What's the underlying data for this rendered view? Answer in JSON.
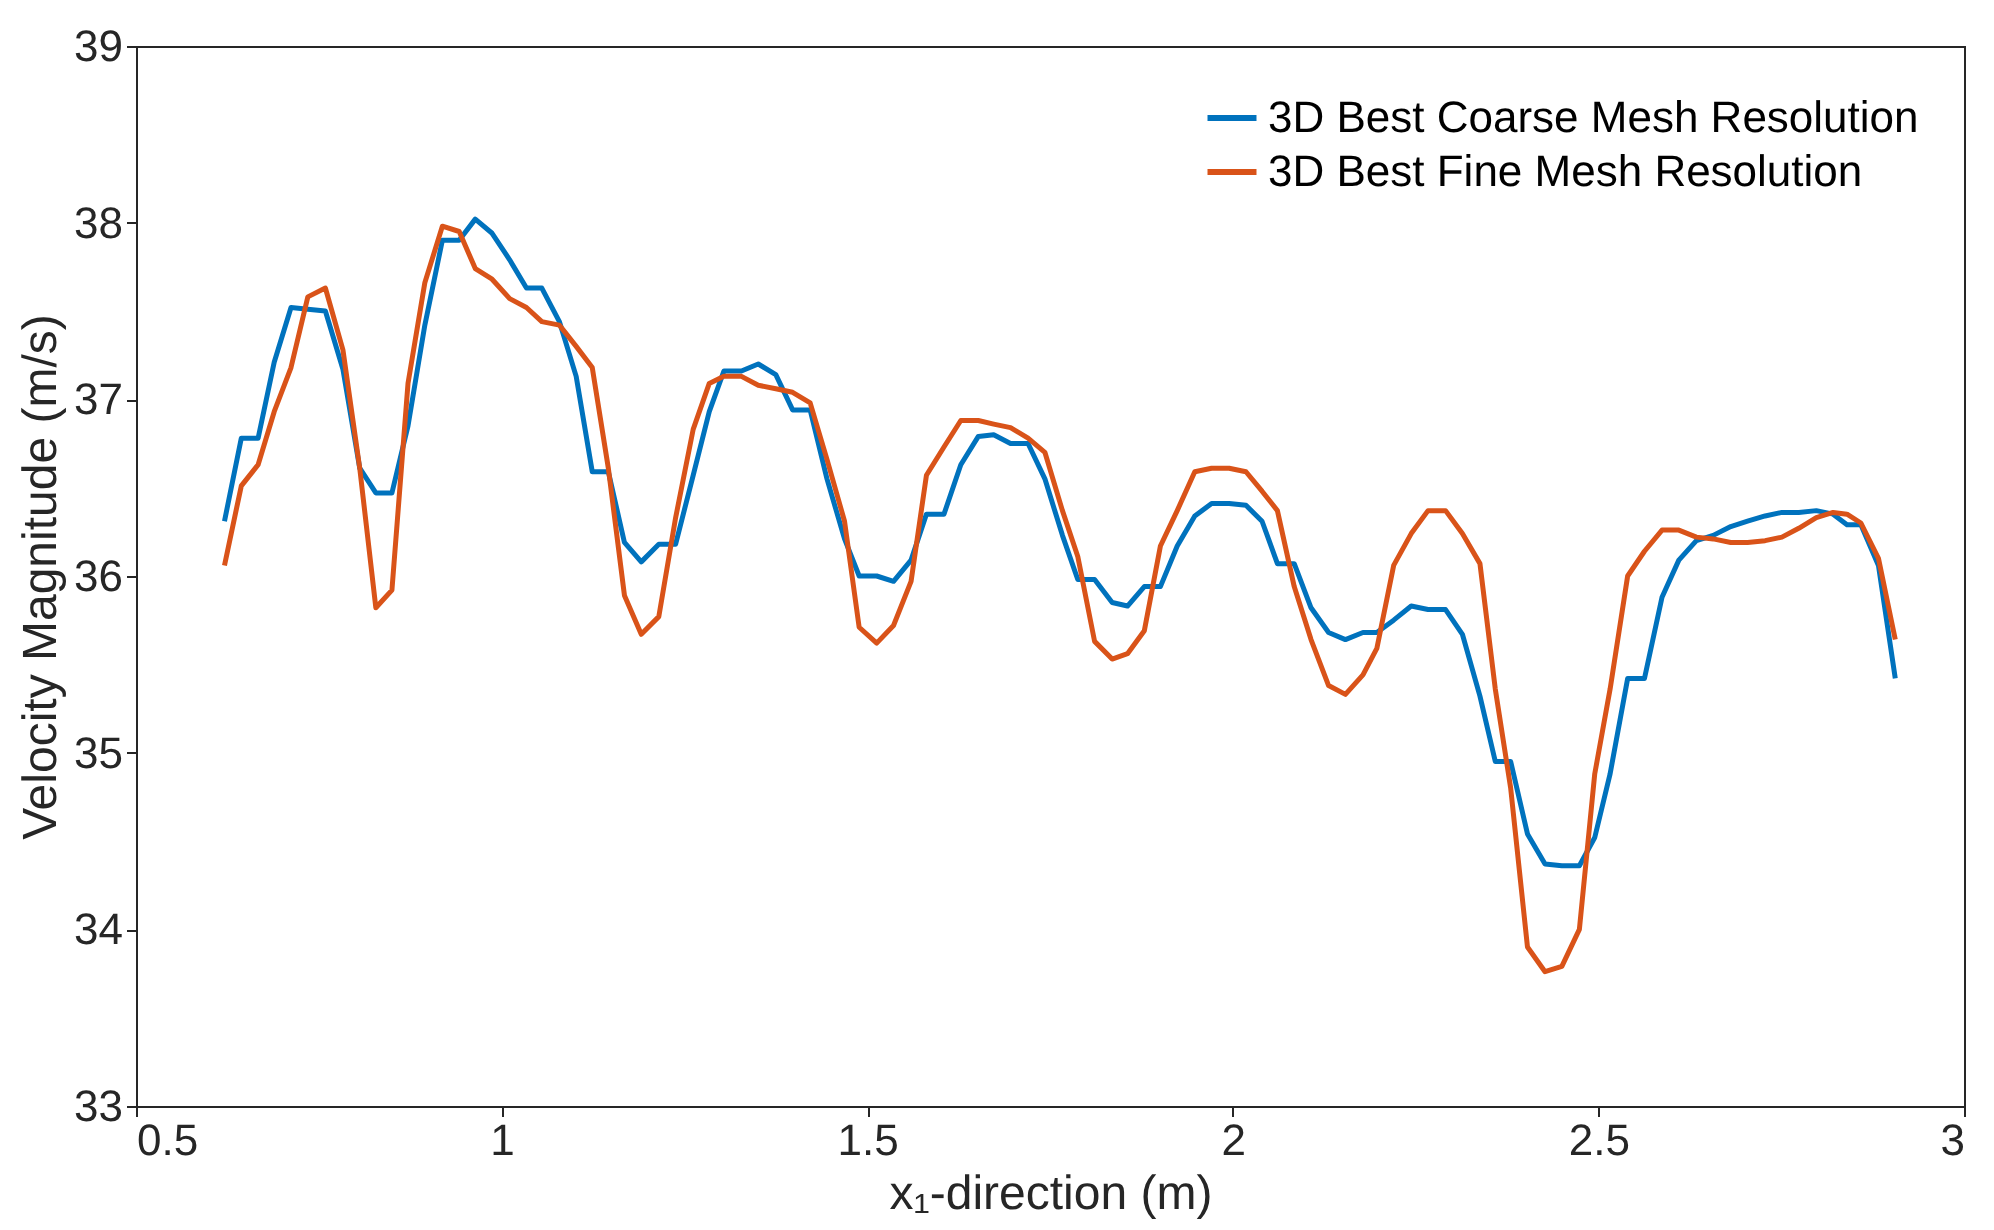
{
  "chart_data": {
    "type": "line",
    "xlabel": "x₁-direction (m)",
    "ylabel": "Velocity Magnitude (m/s)",
    "xlim": [
      0.5,
      3
    ],
    "xticks": [
      0.5,
      1,
      1.5,
      2,
      2.5,
      3
    ],
    "ylim": [
      33,
      39
    ],
    "yticks": [
      33,
      34,
      35,
      36,
      37,
      38,
      39
    ],
    "grid": false,
    "legend": "top right",
    "marker": "none",
    "line_style": "solid",
    "series": [
      {
        "name": "3D Best Coarse Mesh Resolution",
        "color": "#0072bd",
        "x": [
          0.621,
          0.644,
          0.667,
          0.689,
          0.712,
          0.735,
          0.759,
          0.783,
          0.806,
          0.828,
          0.85,
          0.872,
          0.895,
          0.919,
          0.942,
          0.964,
          0.987,
          1.011,
          1.034,
          1.055,
          1.079,
          1.102,
          1.124,
          1.146,
          1.168,
          1.191,
          1.215,
          1.238,
          1.262,
          1.284,
          1.304,
          1.328,
          1.351,
          1.375,
          1.398,
          1.422,
          1.445,
          1.469,
          1.489,
          1.513,
          1.536,
          1.56,
          1.581,
          1.605,
          1.628,
          1.652,
          1.673,
          1.696,
          1.72,
          1.743,
          1.767,
          1.788,
          1.811,
          1.835,
          1.856,
          1.879,
          1.901,
          1.924,
          1.948,
          1.971,
          1.995,
          2.018,
          2.04,
          2.061,
          2.084,
          2.107,
          2.131,
          2.154,
          2.178,
          2.197,
          2.22,
          2.244,
          2.267,
          2.291,
          2.314,
          2.338,
          2.359,
          2.38,
          2.403,
          2.427,
          2.45,
          2.474,
          2.495,
          2.516,
          2.54,
          2.563,
          2.587,
          2.61,
          2.634,
          2.657,
          2.681,
          2.704,
          2.728,
          2.751,
          2.774,
          2.798,
          2.821,
          2.84,
          2.859,
          2.883,
          2.906
        ],
        "values": [
          36.31,
          36.78,
          36.78,
          37.21,
          37.52,
          37.51,
          37.5,
          37.17,
          36.61,
          36.47,
          36.47,
          36.85,
          37.42,
          37.9,
          37.9,
          38.02,
          37.94,
          37.79,
          37.63,
          37.63,
          37.44,
          37.13,
          36.59,
          36.59,
          36.19,
          36.08,
          36.18,
          36.18,
          36.57,
          36.93,
          37.16,
          37.16,
          37.2,
          37.14,
          36.94,
          36.94,
          36.55,
          36.21,
          36.0,
          36.0,
          35.97,
          36.09,
          36.35,
          36.35,
          36.63,
          36.79,
          36.8,
          36.75,
          36.75,
          36.55,
          36.23,
          35.98,
          35.98,
          35.85,
          35.83,
          35.94,
          35.94,
          36.17,
          36.34,
          36.41,
          36.41,
          36.4,
          36.31,
          36.07,
          36.07,
          35.82,
          35.68,
          35.64,
          35.68,
          35.68,
          35.75,
          35.83,
          35.81,
          35.81,
          35.67,
          35.32,
          34.95,
          34.95,
          34.54,
          34.37,
          34.36,
          34.36,
          34.52,
          34.88,
          35.42,
          35.42,
          35.88,
          36.09,
          36.2,
          36.23,
          36.28,
          36.31,
          36.34,
          36.36,
          36.36,
          36.37,
          36.35,
          36.29,
          36.29,
          36.06,
          35.42
        ]
      },
      {
        "name": "3D Best Fine Mesh Resolution",
        "color": "#d95319",
        "x": [
          0.621,
          0.644,
          0.667,
          0.689,
          0.712,
          0.735,
          0.759,
          0.783,
          0.806,
          0.828,
          0.85,
          0.872,
          0.895,
          0.919,
          0.942,
          0.964,
          0.987,
          1.011,
          1.034,
          1.055,
          1.079,
          1.102,
          1.124,
          1.146,
          1.168,
          1.191,
          1.215,
          1.238,
          1.262,
          1.284,
          1.304,
          1.328,
          1.351,
          1.375,
          1.398,
          1.422,
          1.445,
          1.469,
          1.489,
          1.513,
          1.536,
          1.56,
          1.581,
          1.605,
          1.628,
          1.652,
          1.673,
          1.696,
          1.72,
          1.743,
          1.767,
          1.788,
          1.811,
          1.835,
          1.856,
          1.879,
          1.901,
          1.924,
          1.948,
          1.971,
          1.995,
          2.018,
          2.04,
          2.061,
          2.084,
          2.107,
          2.131,
          2.154,
          2.178,
          2.197,
          2.22,
          2.244,
          2.267,
          2.291,
          2.314,
          2.338,
          2.359,
          2.38,
          2.403,
          2.427,
          2.45,
          2.474,
          2.495,
          2.516,
          2.54,
          2.563,
          2.587,
          2.61,
          2.634,
          2.657,
          2.681,
          2.704,
          2.728,
          2.751,
          2.774,
          2.798,
          2.821,
          2.84,
          2.859,
          2.883,
          2.906
        ],
        "values": [
          36.06,
          36.51,
          36.63,
          36.93,
          37.18,
          37.58,
          37.63,
          37.28,
          36.61,
          35.82,
          35.92,
          37.09,
          37.66,
          37.98,
          37.95,
          37.74,
          37.68,
          37.57,
          37.52,
          37.44,
          37.42,
          37.3,
          37.18,
          36.61,
          35.89,
          35.67,
          35.77,
          36.33,
          36.83,
          37.09,
          37.13,
          37.13,
          37.08,
          37.06,
          37.04,
          36.98,
          36.66,
          36.31,
          35.71,
          35.62,
          35.72,
          35.97,
          36.57,
          36.73,
          36.88,
          36.88,
          36.86,
          36.84,
          36.78,
          36.7,
          36.37,
          36.11,
          35.63,
          35.53,
          35.56,
          35.69,
          36.17,
          36.37,
          36.59,
          36.61,
          36.61,
          36.59,
          36.48,
          36.37,
          35.94,
          35.64,
          35.38,
          35.33,
          35.44,
          35.59,
          36.06,
          36.24,
          36.37,
          36.37,
          36.24,
          36.07,
          35.36,
          34.8,
          33.9,
          33.76,
          33.79,
          34.0,
          34.88,
          35.36,
          36.0,
          36.14,
          36.26,
          36.26,
          36.22,
          36.21,
          36.19,
          36.19,
          36.2,
          36.22,
          36.27,
          36.33,
          36.36,
          36.35,
          36.3,
          36.1,
          35.64
        ]
      }
    ]
  }
}
